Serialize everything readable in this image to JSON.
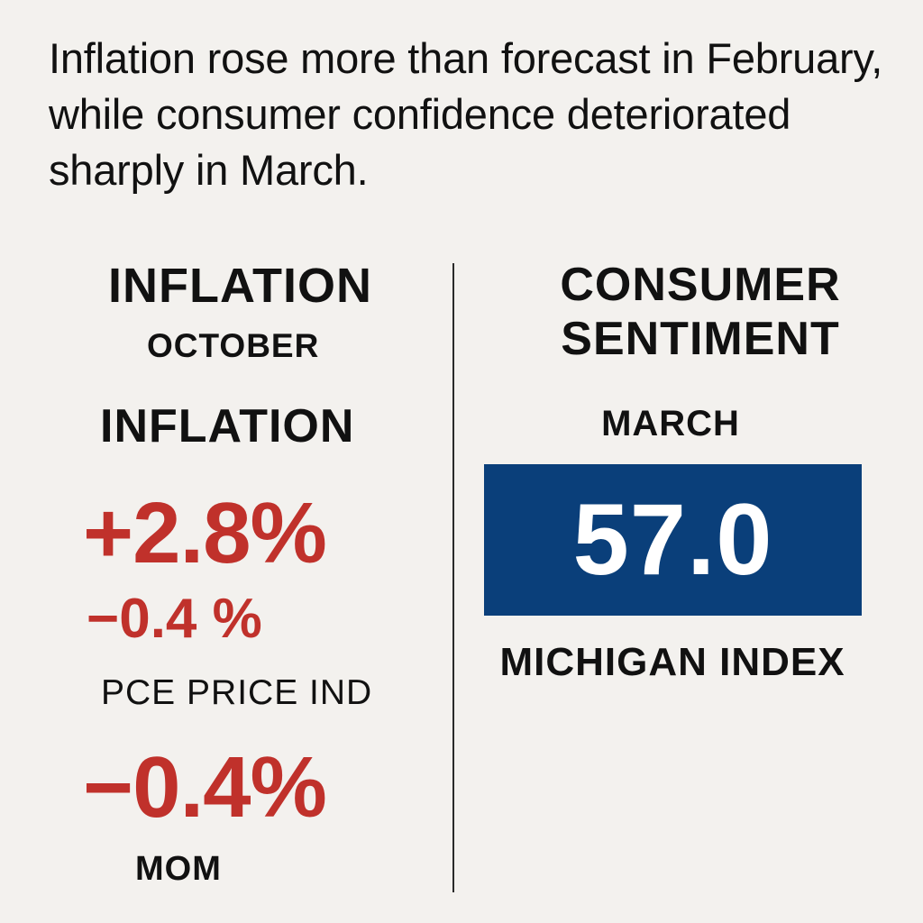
{
  "headline": "Inflation rose more than forecast in February, while consumer confidence deteriorated sharply in March.",
  "left": {
    "heading": "INFLATION",
    "subheading": "OCTOBER",
    "heading2": "INFLATION",
    "value_main": "+2.8%",
    "value_secondary": "−0.4 %",
    "pce_label": "PCE PRICE IND",
    "value_mom": "−0.4%",
    "mom_label": "MOM"
  },
  "right": {
    "heading": "CONSUMER SENTIMENT",
    "month": "MARCH",
    "index_value": "57.0",
    "caption": "MICHIGAN INDEX"
  },
  "colors": {
    "background": "#f3f1ee",
    "accent_red": "#c0312b",
    "index_box_blue": "#0a3f7a",
    "text": "#111111"
  }
}
